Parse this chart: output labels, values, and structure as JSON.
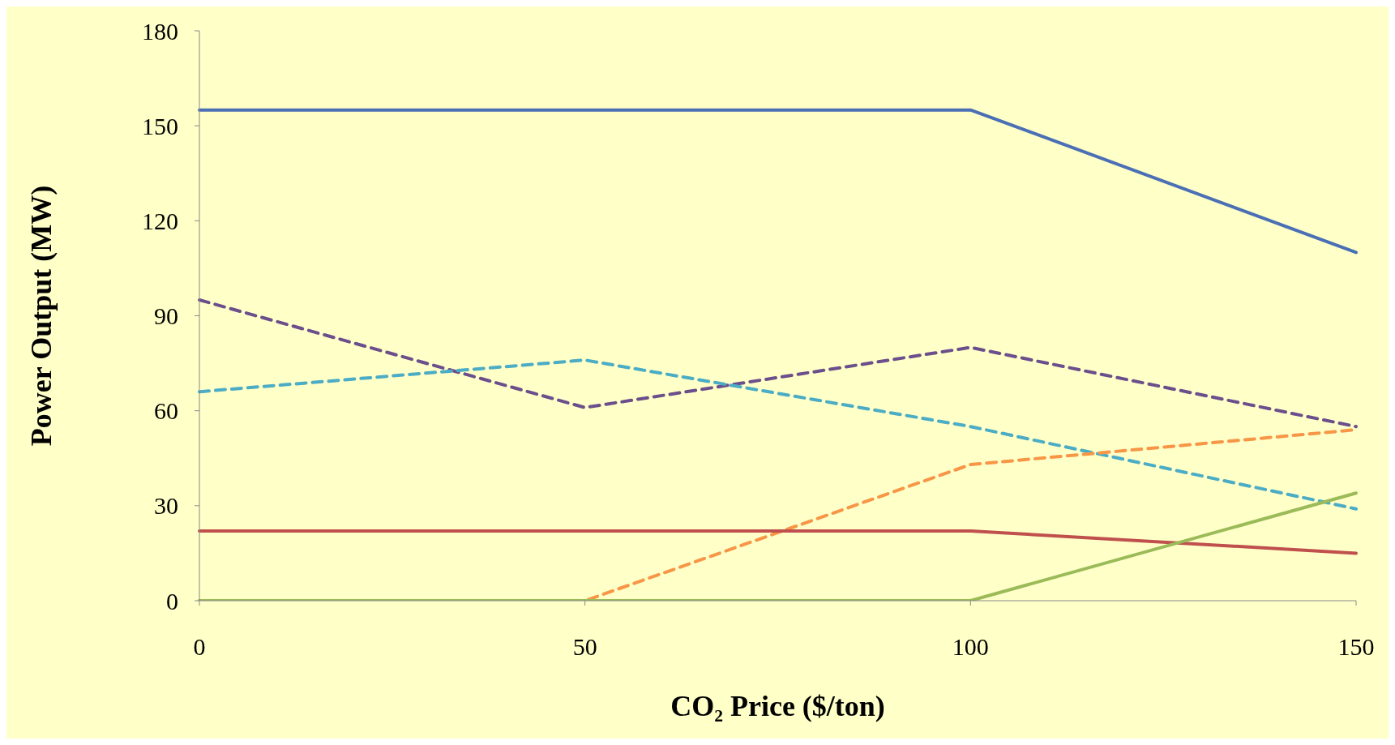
{
  "chart_data": {
    "type": "line",
    "xlabel": "CO₂ Price ($/ton)",
    "ylabel": "Power Output (MW)",
    "x": [
      0,
      50,
      100,
      150
    ],
    "xlim": [
      0,
      150
    ],
    "xticks": [
      0,
      50,
      100,
      150
    ],
    "ylim": [
      0,
      180
    ],
    "yticks": [
      0,
      30,
      60,
      90,
      120,
      150,
      180
    ],
    "grid": false,
    "legend": false,
    "marker": "none",
    "series": [
      {
        "color": "#4a6fb5",
        "line_style": "solid",
        "values": [
          155,
          155,
          155,
          110
        ]
      },
      {
        "color": "#6b4f8c",
        "line_style": "dashed",
        "values": [
          95,
          61,
          80,
          55
        ]
      },
      {
        "color": "#4bacc6",
        "line_style": "dashed",
        "values": [
          66,
          76,
          55,
          29
        ]
      },
      {
        "color": "#f79646",
        "line_style": "dashed",
        "values": [
          0,
          0,
          43,
          54
        ]
      },
      {
        "color": "#c0504d",
        "line_style": "solid",
        "values": [
          22,
          22,
          22,
          15
        ]
      },
      {
        "color": "#9bbb59",
        "line_style": "solid",
        "values": [
          0,
          0,
          0,
          34
        ]
      }
    ]
  }
}
